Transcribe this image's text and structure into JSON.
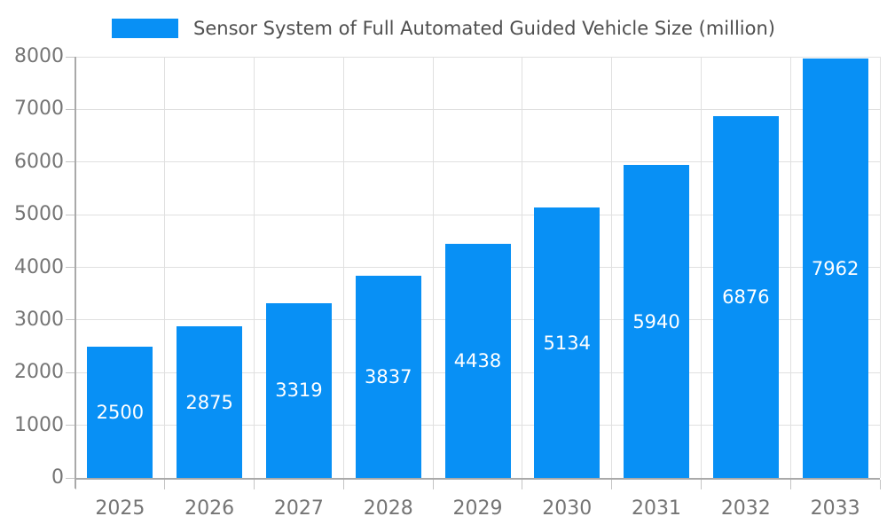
{
  "legend": {
    "label": "Sensor System of Full Automated Guided Vehicle Size (million)"
  },
  "chart_data": {
    "type": "bar",
    "title": "Sensor System of Full Automated Guided Vehicle Size (million)",
    "series_name": "Sensor System of Full Automated Guided Vehicle Size (million)",
    "categories": [
      "2025",
      "2026",
      "2027",
      "2028",
      "2029",
      "2030",
      "2031",
      "2032",
      "2033"
    ],
    "values": [
      2500,
      2875,
      3319,
      3837,
      4438,
      5134,
      5940,
      6876,
      7962
    ],
    "xlabel": "",
    "ylabel": "",
    "ylim": [
      0,
      8000
    ],
    "ytick_interval": 1000,
    "yticks": [
      0,
      1000,
      2000,
      3000,
      4000,
      5000,
      6000,
      7000,
      8000
    ],
    "grid": true,
    "legend_position": "top-center",
    "bar_label_position": "inside-center",
    "colors": {
      "bar": "#0890f5",
      "bar_label": "#ffffff",
      "grid_line": "#e0e0e0",
      "axis_line": "#a9a9a9",
      "tick_mark": "#c4c4c4",
      "tick_label": "#757575",
      "legend_text": "#4f4f4f",
      "background": "#ffffff"
    }
  }
}
